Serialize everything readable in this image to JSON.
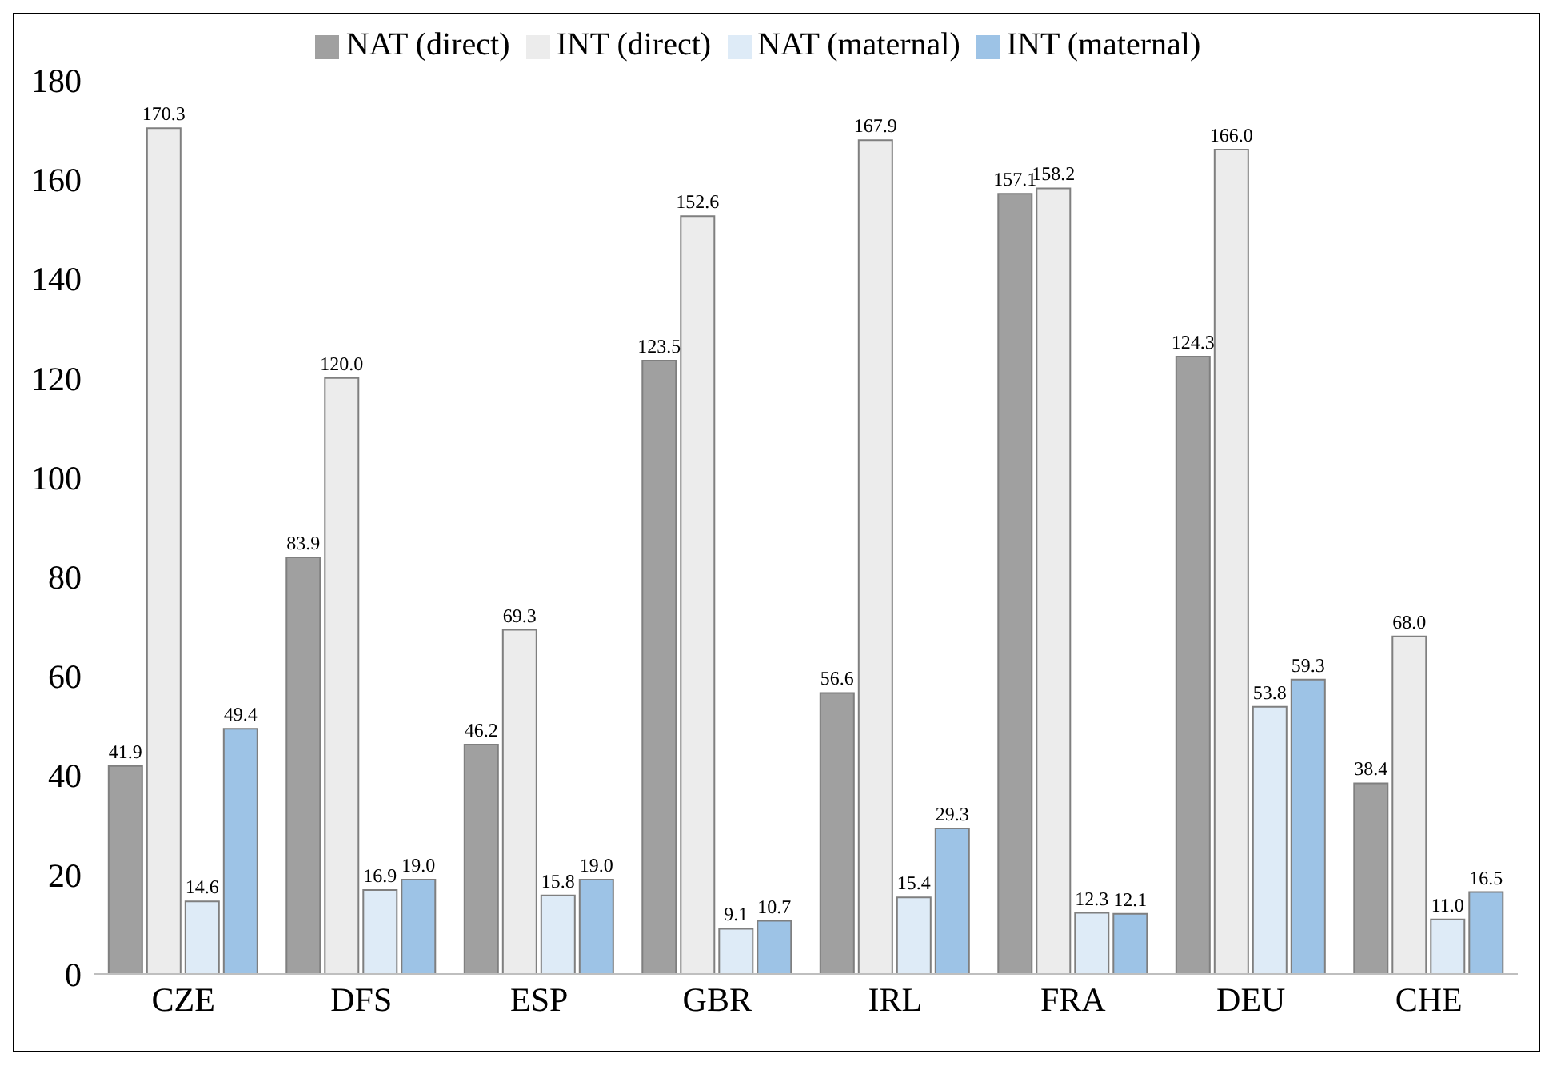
{
  "chart_data": {
    "type": "bar",
    "categories": [
      "CZE",
      "DFS",
      "ESP",
      "GBR",
      "IRL",
      "FRA",
      "DEU",
      "CHE"
    ],
    "series": [
      {
        "name": "NAT (direct)",
        "color": "#a0a0a0",
        "values": [
          41.9,
          83.9,
          46.2,
          123.5,
          56.6,
          157.1,
          124.3,
          38.4
        ],
        "value_labels": [
          "41.9",
          "83.9",
          "46.2",
          "123.5",
          "56.6",
          "157.1",
          "124.3",
          "38.4"
        ]
      },
      {
        "name": "INT (direct)",
        "color": "#ececec",
        "values": [
          170.3,
          120,
          69.3,
          152.6,
          167.9,
          158.2,
          166,
          68
        ],
        "value_labels": [
          "170.3",
          "120.0",
          "69.3",
          "152.6",
          "167.9",
          "158.2",
          "166.0",
          "68.0"
        ]
      },
      {
        "name": "NAT (maternal)",
        "color": "#deebf7",
        "values": [
          14.6,
          16.9,
          15.8,
          9.1,
          15.4,
          12.3,
          53.8,
          11
        ],
        "value_labels": [
          "14.6",
          "16.9",
          "15.8",
          "9.1",
          "15.4",
          "12.3",
          "53.8",
          "11.0"
        ]
      },
      {
        "name": "INT (maternal)",
        "color": "#9dc3e6",
        "values": [
          49.4,
          19,
          19,
          10.7,
          29.3,
          12.1,
          59.3,
          16.5
        ],
        "value_labels": [
          "49.4",
          "19.0",
          "19.0",
          "10.7",
          "29.3",
          "12.1",
          "59.3",
          "16.5"
        ]
      }
    ],
    "ylim": [
      0,
      180
    ],
    "yticks": [
      0,
      20,
      40,
      60,
      80,
      100,
      120,
      140,
      160,
      180
    ],
    "legend": "top",
    "grid": false
  }
}
